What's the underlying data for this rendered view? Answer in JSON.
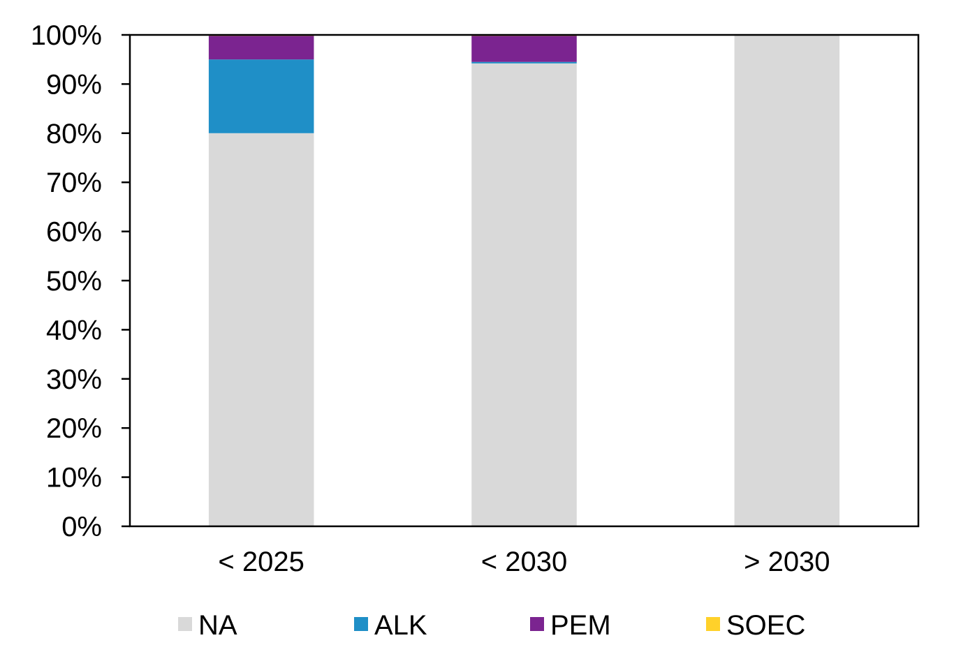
{
  "chart_data": {
    "type": "bar",
    "stacked": true,
    "categories": [
      "< 2025",
      "< 2030",
      "> 2030"
    ],
    "series": [
      {
        "name": "NA",
        "color": "#d9d9d9",
        "values": [
          80,
          94.2,
          100
        ]
      },
      {
        "name": "ALK",
        "color": "#1f8fc7",
        "values": [
          15,
          0.3,
          0
        ]
      },
      {
        "name": "PEM",
        "color": "#7b2490",
        "values": [
          4.8,
          5.3,
          0
        ]
      },
      {
        "name": "SOEC",
        "color": "#ffd12a",
        "values": [
          0.2,
          0.2,
          0
        ]
      }
    ],
    "y_ticks": [
      "0%",
      "10%",
      "20%",
      "30%",
      "40%",
      "50%",
      "60%",
      "70%",
      "80%",
      "90%",
      "100%"
    ],
    "ylim": [
      0,
      100
    ],
    "title": "",
    "xlabel": "",
    "ylabel": "",
    "grid": false,
    "legend_position": "bottom"
  }
}
